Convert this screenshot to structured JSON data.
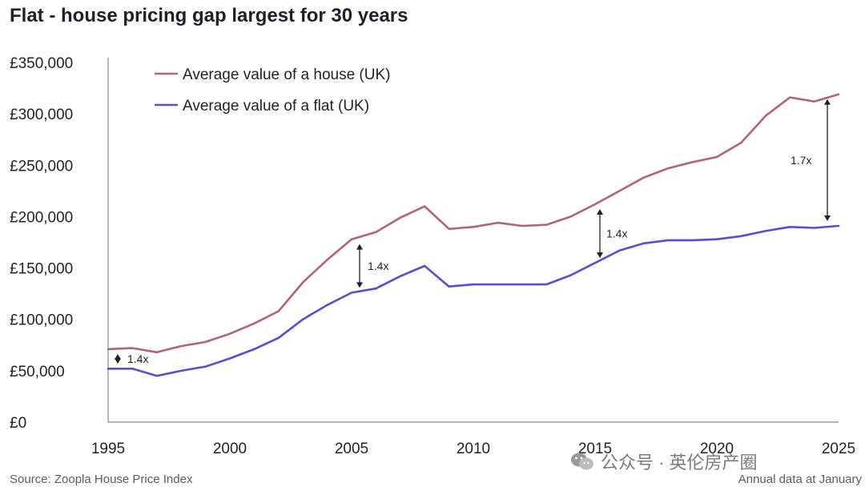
{
  "title": "Flat - house pricing gap largest for 30 years",
  "source": "Source: Zoopla House Price Index",
  "note": "Annual data at January",
  "watermark": "公众号 · 英伦房产圈",
  "chart_data": {
    "type": "line",
    "title": "Flat - house pricing gap largest for 30 years",
    "xlabel": "",
    "ylabel": "",
    "xlim": [
      1995,
      2025
    ],
    "ylim": [
      0,
      350000
    ],
    "x_ticks": [
      1995,
      2000,
      2005,
      2010,
      2015,
      2020,
      2025
    ],
    "y_ticks": [
      0,
      50000,
      100000,
      150000,
      200000,
      250000,
      300000,
      350000
    ],
    "y_tick_labels": [
      "£0",
      "£50,000",
      "£100,000",
      "£150,000",
      "£200,000",
      "£250,000",
      "£300,000",
      "£350,000"
    ],
    "grid": false,
    "legend_position": "top-left",
    "x": [
      1995,
      1996,
      1997,
      1998,
      1999,
      2000,
      2001,
      2002,
      2003,
      2004,
      2005,
      2006,
      2007,
      2008,
      2009,
      2010,
      2011,
      2012,
      2013,
      2014,
      2015,
      2016,
      2017,
      2018,
      2019,
      2020,
      2021,
      2022,
      2023,
      2024,
      2025
    ],
    "series": [
      {
        "name": "Average value of a house (UK)",
        "color": "#b5617a",
        "values": [
          71000,
          72000,
          68000,
          74000,
          78000,
          86000,
          96000,
          108000,
          136000,
          158000,
          178000,
          185000,
          199000,
          210000,
          188000,
          190000,
          194000,
          191000,
          192000,
          200000,
          212000,
          225000,
          238000,
          247000,
          253000,
          258000,
          272000,
          298000,
          316000,
          312000,
          319000
        ]
      },
      {
        "name": "Average value of a flat (UK)",
        "color": "#5b4bd6",
        "values": [
          52000,
          52000,
          45000,
          50000,
          54000,
          62000,
          71000,
          82000,
          100000,
          114000,
          126000,
          130000,
          142000,
          152000,
          132000,
          134000,
          134000,
          134000,
          134000,
          143000,
          155000,
          167000,
          174000,
          177000,
          177000,
          178000,
          181000,
          186000,
          190000,
          189000,
          191000
        ]
      }
    ],
    "annotations": [
      {
        "label": "1.4x",
        "x": 1995
      },
      {
        "label": "1.4x",
        "x": 2005
      },
      {
        "label": "1.4x",
        "x": 2015
      },
      {
        "label": "1.7x",
        "x": 2025
      }
    ]
  }
}
